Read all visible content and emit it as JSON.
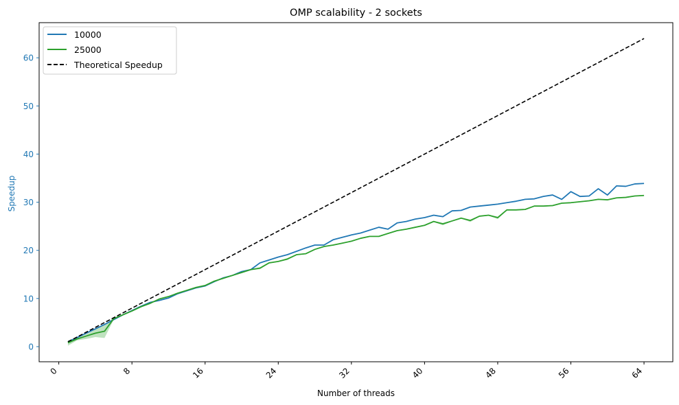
{
  "chart_data": {
    "type": "line",
    "title": "OMP scalability - 2 sockets",
    "xlabel": "Number of threads",
    "ylabel": "Speedup",
    "xlim": [
      -2.15,
      67.15
    ],
    "ylim": [
      -3.14,
      67.3
    ],
    "xticks": [
      0,
      8,
      16,
      24,
      32,
      40,
      48,
      56,
      64
    ],
    "xtick_labels": [
      "0",
      "8",
      "16",
      "24",
      "32",
      "40",
      "48",
      "56",
      "64"
    ],
    "yticks": [
      0,
      10,
      20,
      30,
      40,
      50,
      60
    ],
    "ytick_labels": [
      "0",
      "10",
      "20",
      "30",
      "40",
      "50",
      "60"
    ],
    "grid": false,
    "legend_position": "top-left",
    "ylabel_color": "#1f77b4",
    "series": [
      {
        "name": "10000",
        "color": "#1f77b4",
        "x": [
          1,
          2,
          3,
          4,
          5,
          6,
          7,
          8,
          9,
          10,
          11,
          12,
          13,
          14,
          15,
          16,
          17,
          18,
          19,
          20,
          21,
          22,
          23,
          24,
          25,
          26,
          27,
          28,
          29,
          30,
          31,
          32,
          33,
          34,
          35,
          36,
          37,
          38,
          39,
          40,
          41,
          42,
          43,
          44,
          45,
          46,
          47,
          48,
          49,
          50,
          51,
          52,
          53,
          54,
          55,
          56,
          57,
          58,
          59,
          60,
          61,
          62,
          63,
          64
        ],
        "values": [
          1.0,
          1.9,
          2.8,
          3.7,
          4.6,
          5.6,
          6.6,
          7.5,
          8.4,
          9.2,
          9.6,
          10.1,
          11.0,
          11.6,
          12.2,
          12.6,
          13.5,
          14.3,
          14.8,
          15.6,
          16.0,
          17.4,
          18.0,
          18.6,
          19.1,
          19.8,
          20.5,
          21.1,
          21.1,
          22.2,
          22.7,
          23.2,
          23.6,
          24.2,
          24.8,
          24.4,
          25.7,
          26.0,
          26.5,
          26.8,
          27.3,
          27.0,
          28.2,
          28.3,
          29.0,
          29.2,
          29.4,
          29.6,
          29.9,
          30.2,
          30.6,
          30.7,
          31.2,
          31.5,
          30.6,
          32.2,
          31.2,
          31.3,
          32.8,
          31.5,
          33.4,
          33.3,
          33.8,
          33.9
        ]
      },
      {
        "name": "25000",
        "color": "#2ca02c",
        "x": [
          1,
          2,
          3,
          4,
          5,
          6,
          7,
          8,
          9,
          10,
          11,
          12,
          13,
          14,
          15,
          16,
          17,
          18,
          19,
          20,
          21,
          22,
          23,
          24,
          25,
          26,
          27,
          28,
          29,
          30,
          31,
          32,
          33,
          34,
          35,
          36,
          37,
          38,
          39,
          40,
          41,
          42,
          43,
          44,
          45,
          46,
          47,
          48,
          49,
          50,
          51,
          52,
          53,
          54,
          55,
          56,
          57,
          58,
          59,
          60,
          61,
          62,
          63,
          64
        ],
        "values": [
          0.8,
          1.6,
          2.2,
          2.8,
          3.2,
          5.8,
          6.6,
          7.4,
          8.3,
          9.0,
          9.9,
          10.4,
          11.1,
          11.7,
          12.3,
          12.7,
          13.6,
          14.2,
          14.8,
          15.4,
          16.0,
          16.3,
          17.4,
          17.7,
          18.2,
          19.1,
          19.3,
          20.2,
          20.8,
          21.1,
          21.5,
          21.9,
          22.5,
          22.9,
          22.9,
          23.5,
          24.1,
          24.4,
          24.8,
          25.2,
          26.0,
          25.5,
          26.1,
          26.7,
          26.2,
          27.1,
          27.3,
          26.8,
          28.4,
          28.4,
          28.5,
          29.2,
          29.2,
          29.3,
          29.8,
          29.9,
          30.1,
          30.3,
          30.6,
          30.5,
          30.9,
          31.0,
          31.3,
          31.4
        ],
        "band_low": [
          0.2,
          1.3,
          1.6,
          2.0,
          1.8,
          5.6,
          6.5,
          7.3,
          8.2,
          8.9,
          9.8,
          10.3,
          11.0,
          11.6,
          12.2,
          12.6,
          13.5,
          14.1,
          14.7,
          15.3,
          15.9,
          16.1,
          17.3,
          17.6,
          18.0,
          19.0,
          19.2,
          20.1,
          20.7,
          21.0,
          21.4,
          21.8,
          22.4,
          22.8,
          22.8,
          23.4,
          24.0,
          24.3,
          24.7,
          25.1,
          25.9,
          25.2,
          26.0,
          26.6,
          25.9,
          27.0,
          27.2,
          26.5,
          28.3,
          28.3,
          28.4,
          29.1,
          29.1,
          29.2,
          29.7,
          29.8,
          30.0,
          30.2,
          30.5,
          30.4,
          30.8,
          30.9,
          31.2,
          31.3
        ],
        "band_high": [
          1.3,
          1.9,
          2.6,
          3.6,
          4.6,
          6.0,
          6.7,
          7.5,
          8.4,
          9.1,
          10.0,
          10.5,
          11.2,
          11.8,
          12.4,
          12.8,
          13.7,
          14.3,
          14.9,
          15.5,
          16.1,
          16.5,
          17.5,
          17.8,
          18.4,
          19.2,
          19.4,
          20.3,
          20.9,
          21.2,
          21.6,
          22.0,
          22.6,
          23.0,
          23.0,
          23.6,
          24.2,
          24.5,
          24.9,
          25.3,
          26.1,
          25.7,
          26.2,
          26.8,
          26.4,
          27.2,
          27.4,
          27.0,
          28.5,
          28.5,
          28.6,
          29.3,
          29.3,
          29.4,
          29.9,
          30.0,
          30.2,
          30.4,
          30.7,
          30.6,
          31.0,
          31.1,
          31.4,
          31.5
        ]
      },
      {
        "name": "Theoretical Speedup",
        "color": "#000000",
        "dashed": true,
        "x": [
          1,
          64
        ],
        "values": [
          1,
          64
        ]
      }
    ]
  }
}
